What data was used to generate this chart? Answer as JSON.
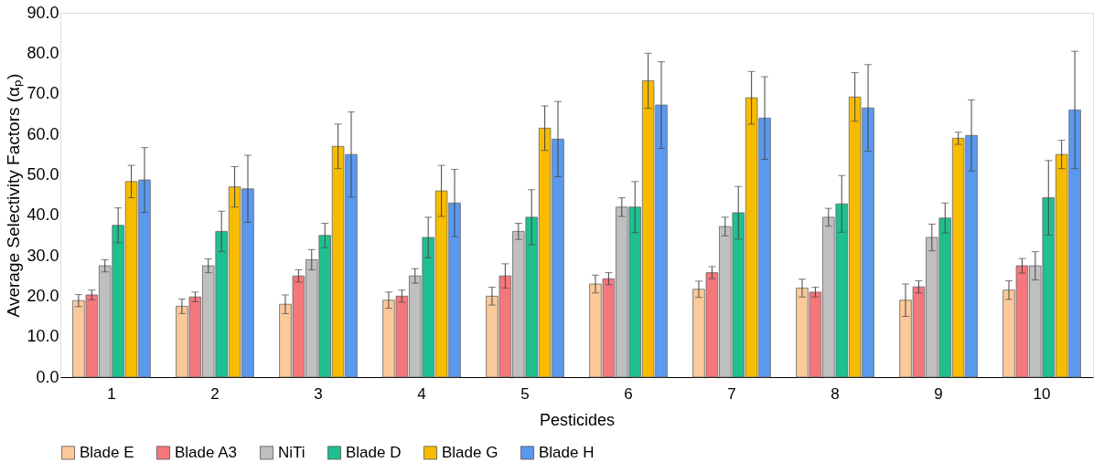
{
  "chart_data": {
    "type": "bar",
    "xlabel": "Pesticides",
    "ylabel": "Average Selectivity Factors (αₚ)",
    "categories": [
      "1",
      "2",
      "3",
      "4",
      "5",
      "6",
      "7",
      "8",
      "9",
      "10"
    ],
    "ylim": [
      0,
      90
    ],
    "yticks": [
      {
        "value": 0,
        "label": "0.0"
      },
      {
        "value": 10,
        "label": "10.0"
      },
      {
        "value": 20,
        "label": "20.0"
      },
      {
        "value": 30,
        "label": "30.0"
      },
      {
        "value": 40,
        "label": "40.0"
      },
      {
        "value": 50,
        "label": "50.0"
      },
      {
        "value": 60,
        "label": "60.0"
      },
      {
        "value": 70,
        "label": "70.0"
      },
      {
        "value": 80,
        "label": "80.0"
      },
      {
        "value": 90,
        "label": "90.0"
      }
    ],
    "grid": false,
    "legend": "bottom",
    "series": [
      {
        "name": "Blade E",
        "color": "#fbc99a",
        "values": [
          18.9,
          17.5,
          18,
          19,
          20,
          23,
          21.7,
          22,
          19,
          21.5
        ],
        "errors": [
          1.5,
          1.8,
          2.3,
          2,
          2.2,
          2.2,
          2,
          2.2,
          4,
          2.3
        ]
      },
      {
        "name": "Blade A3",
        "color": "#f4777b",
        "values": [
          20.3,
          19.8,
          25,
          20,
          25,
          24.3,
          25.8,
          21,
          22.3,
          27.5
        ],
        "errors": [
          1.2,
          1.2,
          1.5,
          1.5,
          3,
          1.5,
          1.5,
          1.2,
          1.5,
          1.8
        ]
      },
      {
        "name": "NiTi",
        "color": "#bfbfbf",
        "values": [
          27.5,
          27.5,
          29,
          25,
          36,
          42,
          37.2,
          39.5,
          34.5,
          27.5
        ],
        "errors": [
          1.5,
          1.7,
          2.5,
          1.8,
          2,
          2.3,
          2.3,
          2.2,
          3.3,
          3.5
        ]
      },
      {
        "name": "Blade D",
        "color": "#1fc090",
        "values": [
          37.5,
          36,
          35,
          34.5,
          39.5,
          42,
          40.6,
          42.8,
          39.3,
          44.3
        ],
        "errors": [
          4.3,
          5,
          3,
          5,
          6.8,
          6.3,
          6.5,
          7,
          3.7,
          9.2
        ]
      },
      {
        "name": "Blade G",
        "color": "#f7bc00",
        "values": [
          48.3,
          47,
          57,
          46,
          61.5,
          73.2,
          69,
          69.2,
          59,
          55
        ],
        "errors": [
          4,
          5,
          5.5,
          6.3,
          5.5,
          6.8,
          6.5,
          6,
          1.5,
          3.5
        ]
      },
      {
        "name": "Blade H",
        "color": "#5a99ee",
        "values": [
          48.7,
          46.5,
          55,
          43,
          58.8,
          67.2,
          64,
          66.5,
          59.7,
          66
        ],
        "errors": [
          8,
          8.3,
          10.5,
          8.3,
          9.3,
          10.7,
          10.2,
          10.7,
          8.8,
          14.5
        ]
      }
    ]
  }
}
